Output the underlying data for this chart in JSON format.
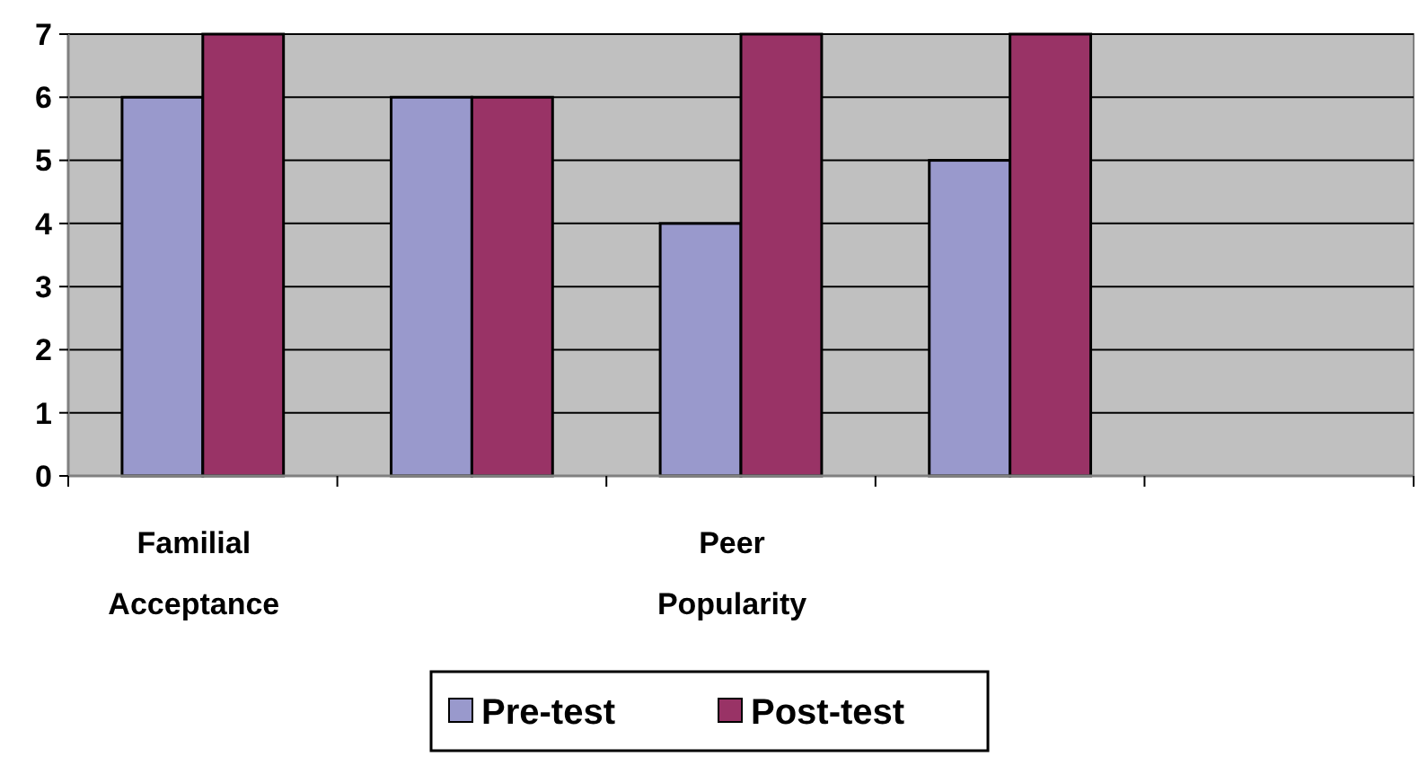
{
  "chart_data": {
    "type": "bar",
    "categories": [
      "Familial Acceptance",
      null,
      "Peer Popularity",
      null,
      null
    ],
    "series": [
      {
        "name": "Pre-test",
        "color": "#9999cc",
        "values": [
          6,
          6,
          4,
          5,
          null
        ]
      },
      {
        "name": "Post-test",
        "color": "#993366",
        "values": [
          7,
          6,
          7,
          7,
          null
        ]
      }
    ],
    "ylim": [
      0,
      7
    ],
    "yticks": [
      0,
      1,
      2,
      3,
      4,
      5,
      6,
      7
    ],
    "grid": "y",
    "legend": "bottom"
  }
}
